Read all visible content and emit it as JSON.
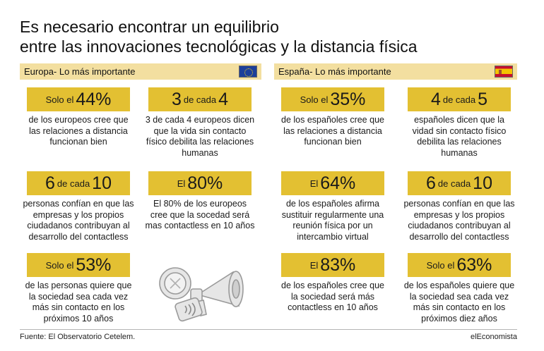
{
  "title_line1": "Es necesario encontrar un equilibrio",
  "title_line2": "entre las innovaciones tecnológicas y la distancia física",
  "europe": {
    "header": "Europa- Lo más importante",
    "flag_icon": "eu-flag-icon",
    "cards": [
      {
        "pre": "Solo el",
        "big": "44%",
        "post": "",
        "desc": "de los europeos cree que las relaciones a distancia funcionan bien"
      },
      {
        "pre": "",
        "big": "3",
        "post": "de cada",
        "big2": "4",
        "desc": "3 de cada 4 europeos dicen que la vida sin contacto físico debilita las relaciones humanas"
      },
      {
        "pre": "",
        "big": "6",
        "post": "de cada",
        "big2": "10",
        "desc": "personas confían en que las empresas y los propios ciudadanos contribuyan al desarrollo del contactless"
      },
      {
        "pre": "El",
        "big": "80%",
        "post": "",
        "desc": "El 80% de los europeos cree que la socedad será mas contactless en 10 años"
      },
      {
        "pre": "Solo el",
        "big": "53%",
        "post": "",
        "desc": "de las personas quiere que la sociedad sea cada vez más sin contacto en los próximos 10 años"
      }
    ]
  },
  "spain": {
    "header": "España- Lo más importante",
    "flag_icon": "spain-flag-icon",
    "cards": [
      {
        "pre": "Solo el",
        "big": "35%",
        "post": "",
        "desc": "de los españoles cree que las relaciones a distancia funcionan bien"
      },
      {
        "pre": "",
        "big": "4",
        "post": "de cada",
        "big2": "5",
        "desc": "españoles dicen que la vidad sin contacto físico debilita las relaciones humanas"
      },
      {
        "pre": "El",
        "big": "64%",
        "post": "",
        "desc": "de los españoles afirma sustituir regularmente una reunión física por un intercambio virtual"
      },
      {
        "pre": "",
        "big": "6",
        "post": "de cada",
        "big2": "10",
        "desc": "personas confían en que las empresas y los propios ciudadanos contribuyan al desarrollo del contactless"
      },
      {
        "pre": "El",
        "big": "83%",
        "post": "",
        "desc": "de los españoles cree que la sociedad será más contactless en 10 años"
      },
      {
        "pre": "Solo el",
        "big": "63%",
        "post": "",
        "desc": "de los españoles quiere que la sociedad sea cada vez más sin contacto en los próximos diez años"
      }
    ]
  },
  "illustration_icon": "contactless-devices-icon",
  "source": "Fuente: El Observatorio Cetelem.",
  "brand": "elEconomista",
  "colors": {
    "highlight": "#e3c032",
    "header_bar": "#f3dfa0"
  }
}
